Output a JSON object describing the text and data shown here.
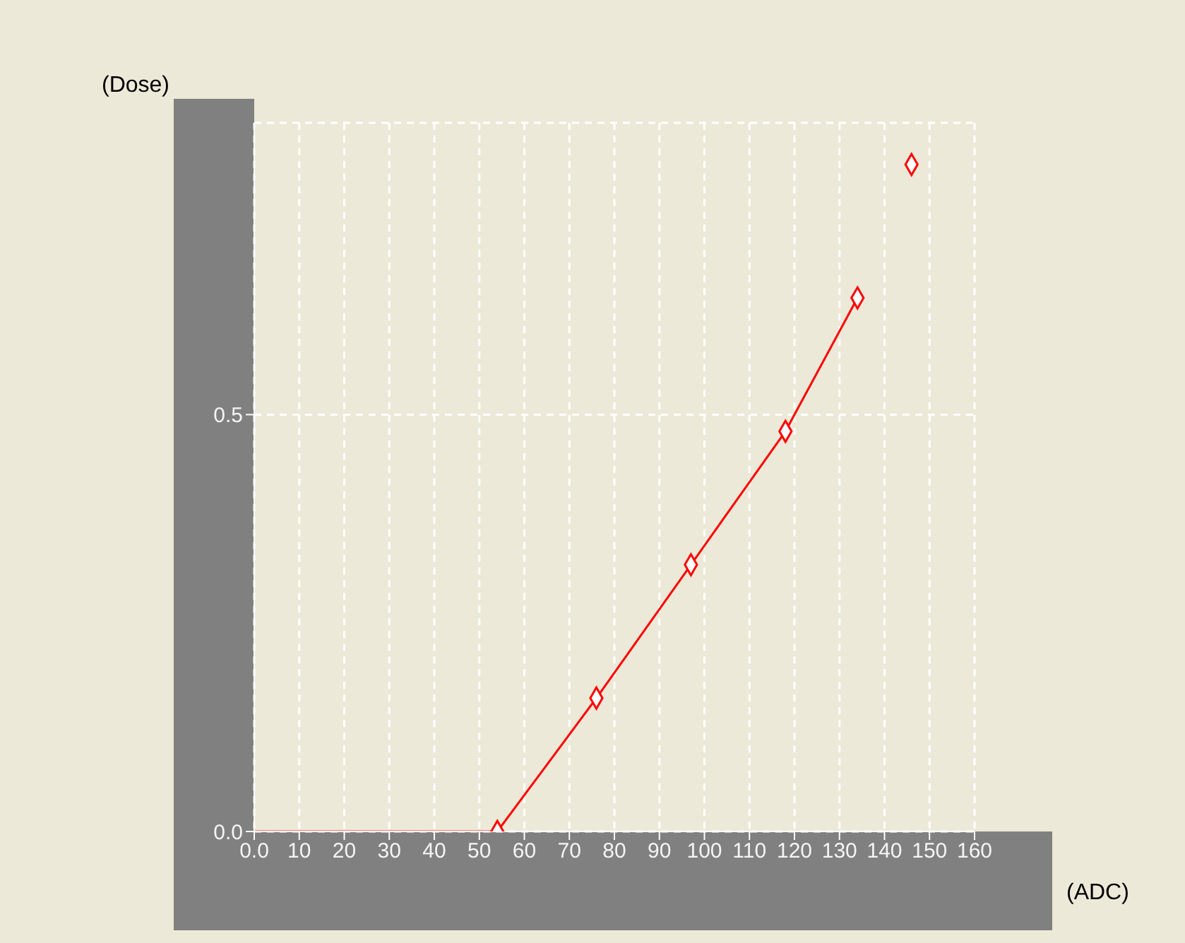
{
  "chart_data": {
    "type": "line",
    "xlabel": "(ADC)",
    "ylabel": "(Dose)",
    "xlim": [
      0,
      160
    ],
    "xticks": [
      {
        "value": 0,
        "label": "0.0"
      },
      10,
      20,
      30,
      40,
      50,
      60,
      70,
      80,
      90,
      100,
      110,
      120,
      130,
      140,
      150,
      160
    ],
    "ylim": [
      0,
      0.85
    ],
    "yticks": [
      {
        "value": 0,
        "label": "0.0"
      },
      0.5
    ],
    "grid": true,
    "series": [
      {
        "type": "line",
        "color": "#ff0000",
        "marker": "none",
        "x": [
          0,
          54,
          76,
          97,
          118,
          134
        ],
        "values": [
          0,
          0,
          0.16,
          0.32,
          0.48,
          0.64
        ]
      },
      {
        "type": "scatter",
        "color": "#ff0000",
        "marker": "diamond",
        "x": [
          54,
          76,
          97,
          118,
          134,
          146
        ],
        "values": [
          0,
          0.16,
          0.32,
          0.48,
          0.64,
          0.8
        ]
      }
    ]
  }
}
